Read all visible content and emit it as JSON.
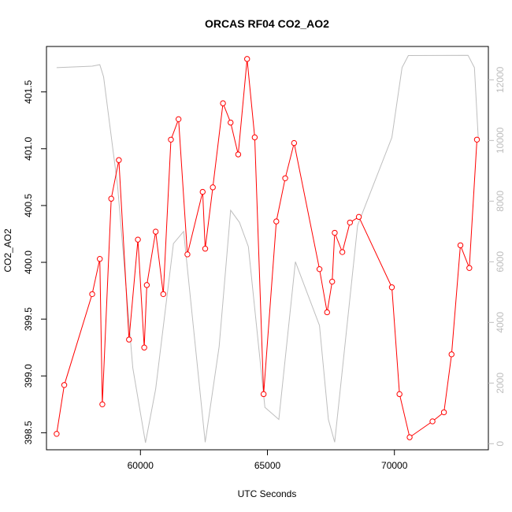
{
  "chart_data": {
    "type": "line",
    "title": "ORCAS RF04 CO2_AO2",
    "xlabel": "UTC Seconds",
    "ylabel": "CO2_AO2",
    "xlim": [
      56300,
      73700
    ],
    "ylim": [
      398.35,
      401.9
    ],
    "y2lim": [
      -200,
      13100
    ],
    "x_ticks": [
      60000,
      65000,
      70000
    ],
    "x_tick_labels": [
      "60000",
      "65000",
      "70000"
    ],
    "y_ticks": [
      398.5,
      399.0,
      399.5,
      400.0,
      400.5,
      401.0,
      401.5
    ],
    "y_tick_labels": [
      "398.5",
      "399.0",
      "399.5",
      "400.0",
      "400.5",
      "401.0",
      "401.5"
    ],
    "y2_ticks": [
      0,
      2000,
      4000,
      6000,
      8000,
      10000,
      12000
    ],
    "y2_tick_labels": [
      "0",
      "2000",
      "4000",
      "6000",
      "8000",
      "10000",
      "12000"
    ],
    "grid": false,
    "colors": {
      "co2": "#ff0000",
      "altitude": "#bebebe",
      "axis": "#000000",
      "axis2": "#bdbdbd"
    },
    "series": [
      {
        "axis": "left",
        "style": "line-with-open-circles",
        "x": [
          56700,
          57000,
          58100,
          58400,
          58500,
          58850,
          59150,
          59550,
          59900,
          60150,
          60250,
          60600,
          60900,
          61200,
          61500,
          61850,
          62450,
          62550,
          62850,
          63250,
          63550,
          63850,
          64200,
          64500,
          64850,
          65350,
          65700,
          66050,
          67050,
          67350,
          67550,
          67650,
          67950,
          68250,
          68600,
          69900,
          70200,
          70600,
          71500,
          71950,
          72250,
          72600,
          72950,
          73250
        ],
        "y": [
          398.49,
          398.92,
          399.72,
          400.03,
          398.75,
          400.56,
          400.9,
          399.32,
          400.2,
          399.25,
          399.8,
          400.27,
          399.72,
          401.08,
          401.26,
          400.07,
          400.62,
          400.12,
          400.66,
          401.4,
          401.23,
          400.95,
          401.79,
          401.1,
          398.84,
          400.36,
          400.74,
          401.05,
          399.94,
          399.56,
          399.83,
          400.26,
          400.09,
          400.35,
          400.4,
          399.78,
          398.84,
          398.46,
          398.6,
          398.68,
          399.19,
          400.15,
          399.95,
          401.08
        ]
      },
      {
        "axis": "right",
        "style": "line",
        "x": [
          56700,
          58100,
          58400,
          58550,
          59100,
          59700,
          60200,
          60600,
          61300,
          61700,
          62550,
          63100,
          63550,
          63900,
          64250,
          64900,
          65450,
          66100,
          67050,
          67400,
          67650,
          68550,
          69900,
          70300,
          70550,
          72900,
          73150,
          73300
        ],
        "y": [
          12400,
          12450,
          12500,
          12100,
          8500,
          2500,
          30,
          1800,
          6600,
          7000,
          50,
          3200,
          7700,
          7300,
          6500,
          1200,
          800,
          6000,
          3900,
          800,
          50,
          7200,
          10100,
          12400,
          12800,
          12810,
          12400,
          10100
        ]
      }
    ]
  }
}
